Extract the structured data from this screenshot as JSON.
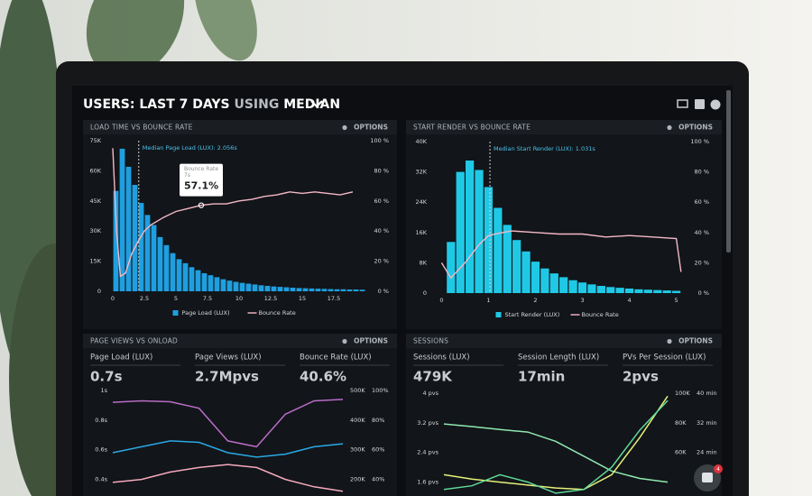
{
  "header": {
    "parts": [
      "USERS:",
      "LAST 7 DAYS",
      "USING",
      "MEDIAN"
    ]
  },
  "badge": "4",
  "panels": [
    {
      "title": "LOAD TIME VS BOUNCE RATE",
      "options": "OPTIONS",
      "chart": {
        "type": "histogram",
        "bins": [
          0,
          0.5,
          1,
          1.5,
          2,
          2.5,
          3,
          3.5,
          4,
          4.5,
          5,
          5.5,
          6,
          6.5,
          7,
          7.5,
          8,
          8.5,
          9,
          9.5,
          10,
          10.5,
          11,
          11.5,
          12,
          12.5,
          13,
          13.5,
          14,
          14.5,
          15,
          15.5,
          16,
          16.5,
          17,
          17.5,
          18,
          18.5,
          19,
          19.5,
          20
        ],
        "series": [
          {
            "name": "Page Load (LUX)",
            "type": "bar",
            "color": "#1f9fe0",
            "values": [
              50000,
              71000,
              62000,
              53000,
              44000,
              38000,
              33000,
              27000,
              23000,
              19000,
              16000,
              14000,
              12000,
              10500,
              9000,
              8000,
              7000,
              6000,
              5300,
              4700,
              4200,
              3800,
              3400,
              3000,
              2700,
              2400,
              2200,
              2000,
              1800,
              1600,
              1500,
              1400,
              1300,
              1200,
              1100,
              1000,
              1000,
              900,
              900,
              800
            ]
          },
          {
            "name": "Bounce Rate",
            "type": "line",
            "axis": "y2",
            "color": "#f5b8c7",
            "x": [
              0,
              0.3,
              0.6,
              1,
              1.5,
              2,
              2.5,
              3,
              4,
              5,
              6,
              7,
              8,
              9,
              10,
              11,
              12,
              13,
              14,
              15,
              16,
              17,
              18,
              19
            ],
            "values": [
              95,
              40,
              10,
              12,
              25,
              33,
              40,
              44,
              49,
              53,
              55,
              57.1,
              58,
              58,
              60,
              61,
              63,
              64,
              66,
              65,
              66,
              65,
              64,
              66
            ]
          }
        ],
        "xlim": [
          -0.5,
          20
        ],
        "xticks": [
          0,
          2.5,
          5,
          7.5,
          10,
          12.5,
          15,
          17.5
        ],
        "ylim": [
          0,
          75000
        ],
        "yticks": [
          0,
          {
            "value": 15000,
            "label": "15K"
          },
          {
            "value": 30000,
            "label": "30K"
          },
          {
            "value": 45000,
            "label": "45K"
          },
          {
            "value": 60000,
            "label": "60K"
          },
          {
            "value": 75000,
            "label": "75K"
          }
        ],
        "y2lim": [
          0,
          100
        ],
        "y2ticks": [
          {
            "value": 0,
            "label": "0 %"
          },
          {
            "value": 20,
            "label": "20 %"
          },
          {
            "value": 40,
            "label": "40 %"
          },
          {
            "value": 60,
            "label": "60 %"
          },
          {
            "value": 80,
            "label": "80 %"
          },
          {
            "value": 100,
            "label": "100 %"
          }
        ],
        "median": {
          "value": 2.056,
          "label": "Median Page Load (LUX): 2.056s"
        },
        "tooltip": {
          "title": "Bounce Rate",
          "x": 7,
          "x_label": "7s",
          "value": 57.1,
          "value_label": "57.1%"
        }
      }
    },
    {
      "title": "START RENDER VS BOUNCE RATE",
      "options": "OPTIONS",
      "chart": {
        "type": "histogram",
        "bins": [
          0.1,
          0.3,
          0.5,
          0.7,
          0.9,
          1.1,
          1.3,
          1.5,
          1.7,
          1.9,
          2.1,
          2.3,
          2.5,
          2.7,
          2.9,
          3.1,
          3.3,
          3.5,
          3.7,
          3.9,
          4.1,
          4.3,
          4.5,
          4.7,
          4.9,
          5.1
        ],
        "series": [
          {
            "name": "Start Render (LUX)",
            "type": "bar",
            "color": "#1fc9e6",
            "values": [
              13500,
              32000,
              35000,
              32500,
              28000,
              22500,
              18000,
              14000,
              11000,
              8300,
              6500,
              5200,
              4200,
              3400,
              2800,
              2300,
              1900,
              1600,
              1400,
              1200,
              1000,
              900,
              800,
              700,
              600
            ]
          },
          {
            "name": "Bounce Rate",
            "type": "line",
            "axis": "y2",
            "color": "#f5b8c7",
            "x": [
              0,
              0.2,
              0.5,
              0.8,
              1,
              1.3,
              1.5,
              2,
              2.5,
              3,
              3.5,
              4,
              4.5,
              5,
              5.1
            ],
            "values": [
              20,
              10,
              20,
              32,
              38,
              40,
              41,
              40,
              39,
              39,
              37,
              38,
              37,
              36,
              14
            ]
          }
        ],
        "xlim": [
          -0.2,
          5.2
        ],
        "xticks": [
          0,
          1,
          2,
          3,
          4,
          5
        ],
        "ylim": [
          0,
          40000
        ],
        "yticks": [
          0,
          {
            "value": 8000,
            "label": "8K"
          },
          {
            "value": 16000,
            "label": "16K"
          },
          {
            "value": 24000,
            "label": "24K"
          },
          {
            "value": 32000,
            "label": "32K"
          },
          {
            "value": 40000,
            "label": "40K"
          }
        ],
        "y2lim": [
          0,
          100
        ],
        "y2ticks": [
          {
            "value": 0,
            "label": "0 %"
          },
          {
            "value": 20,
            "label": "20 %"
          },
          {
            "value": 40,
            "label": "40 %"
          },
          {
            "value": 60,
            "label": "60 %"
          },
          {
            "value": 80,
            "label": "80 %"
          },
          {
            "value": 100,
            "label": "100 %"
          }
        ],
        "median": {
          "value": 1.031,
          "label": "Median Start Render (LUX): 1.031s"
        }
      }
    },
    {
      "title": "PAGE VIEWS VS ONLOAD",
      "options": "OPTIONS",
      "kpis": [
        {
          "label": "Page Load (LUX)",
          "value": "0.7s",
          "color": "#2aa8e6"
        },
        {
          "label": "Page Views (LUX)",
          "value": "2.7Mpvs",
          "color": "#b86cc8"
        },
        {
          "label": "Bounce Rate (LUX)",
          "value": "40.6%",
          "color": "#f5a9bd"
        }
      ],
      "chart": {
        "type": "multiline",
        "categories": [
          null,
          null,
          null,
          null,
          null,
          null,
          null,
          null,
          null
        ],
        "series": [
          {
            "axis": "y",
            "color": "#2aa8e6",
            "values": [
              0.58,
              0.62,
              0.66,
              0.65,
              0.58,
              0.55,
              0.57,
              0.62,
              0.64
            ]
          },
          {
            "axis": "y2",
            "color": "#b86cc8",
            "values": [
              460000,
              465000,
              462000,
              440000,
              330000,
              310000,
              420000,
              465000,
              470000
            ]
          },
          {
            "axis": "y3",
            "color": "#f5a9bd",
            "values": [
              38,
              40,
              45,
              48,
              50,
              48,
              40,
              35,
              32
            ]
          }
        ],
        "ylim": [
          0.3,
          1
        ],
        "yticks": [
          {
            "value": 1,
            "label": "1s"
          },
          {
            "value": 0.8,
            "label": "0.8s"
          },
          {
            "value": 0.6,
            "label": "0.6s"
          },
          {
            "value": 0.4,
            "label": "0.4s"
          }
        ],
        "y2lim": [
          150000,
          500000
        ],
        "y2ticks": [
          {
            "value": 500000,
            "label": "500K"
          },
          {
            "value": 400000,
            "label": "400K"
          },
          {
            "value": 300000,
            "label": "300K"
          },
          {
            "value": 200000,
            "label": "200K"
          }
        ],
        "y3lim": [
          30,
          100
        ],
        "y3ticks": [
          {
            "value": 100,
            "label": "100%"
          },
          {
            "value": 80,
            "label": "80%"
          },
          {
            "value": 60,
            "label": "60%"
          },
          {
            "value": 40,
            "label": "40%"
          }
        ]
      }
    },
    {
      "title": "SESSIONS",
      "options": "OPTIONS",
      "kpis": [
        {
          "label": "Sessions (LUX)",
          "value": "479K",
          "color": "#8fe8b0"
        },
        {
          "label": "Session Length (LUX)",
          "value": "17min",
          "color": "#e6f07a"
        },
        {
          "label": "PVs Per Session (LUX)",
          "value": "2pvs",
          "color": "#5fd89a"
        }
      ],
      "chart": {
        "type": "multiline",
        "categories": [
          null,
          null,
          null,
          null,
          null,
          null,
          null,
          null,
          null
        ],
        "series": [
          {
            "axis": "y",
            "color": "#8fe8b0",
            "values": [
              3.17,
              3.1,
              3.02,
              2.95,
              2.7,
              2.3,
              1.9,
              1.7,
              1.6
            ]
          },
          {
            "axis": "y2",
            "color": "#e6f07a",
            "values": [
              45000,
              42000,
              40000,
              38000,
              36000,
              35000,
              45000,
              70000,
              98000
            ]
          },
          {
            "axis": "y3",
            "color": "#5fd89a",
            "values": [
              14,
              15,
              18,
              16,
              13,
              14,
              20,
              30,
              38
            ]
          }
        ],
        "ylim": [
          1.2,
          4
        ],
        "yticks": [
          {
            "value": 4,
            "label": "4 pvs"
          },
          {
            "value": 3.2,
            "label": "3.2 pvs"
          },
          {
            "value": 2.4,
            "label": "2.4 pvs"
          },
          {
            "value": 1.6,
            "label": "1.6 pvs"
          }
        ],
        "y2lim": [
          30000,
          100000
        ],
        "y2ticks": [
          {
            "value": 100000,
            "label": "100K"
          },
          {
            "value": 80000,
            "label": "80K"
          },
          {
            "value": 60000,
            "label": "60K"
          }
        ],
        "y3lim": [
          12,
          40
        ],
        "y3ticks": [
          {
            "value": 40,
            "label": "40 min"
          },
          {
            "value": 32,
            "label": "32 min"
          },
          {
            "value": 24,
            "label": "24 min"
          }
        ]
      }
    }
  ]
}
